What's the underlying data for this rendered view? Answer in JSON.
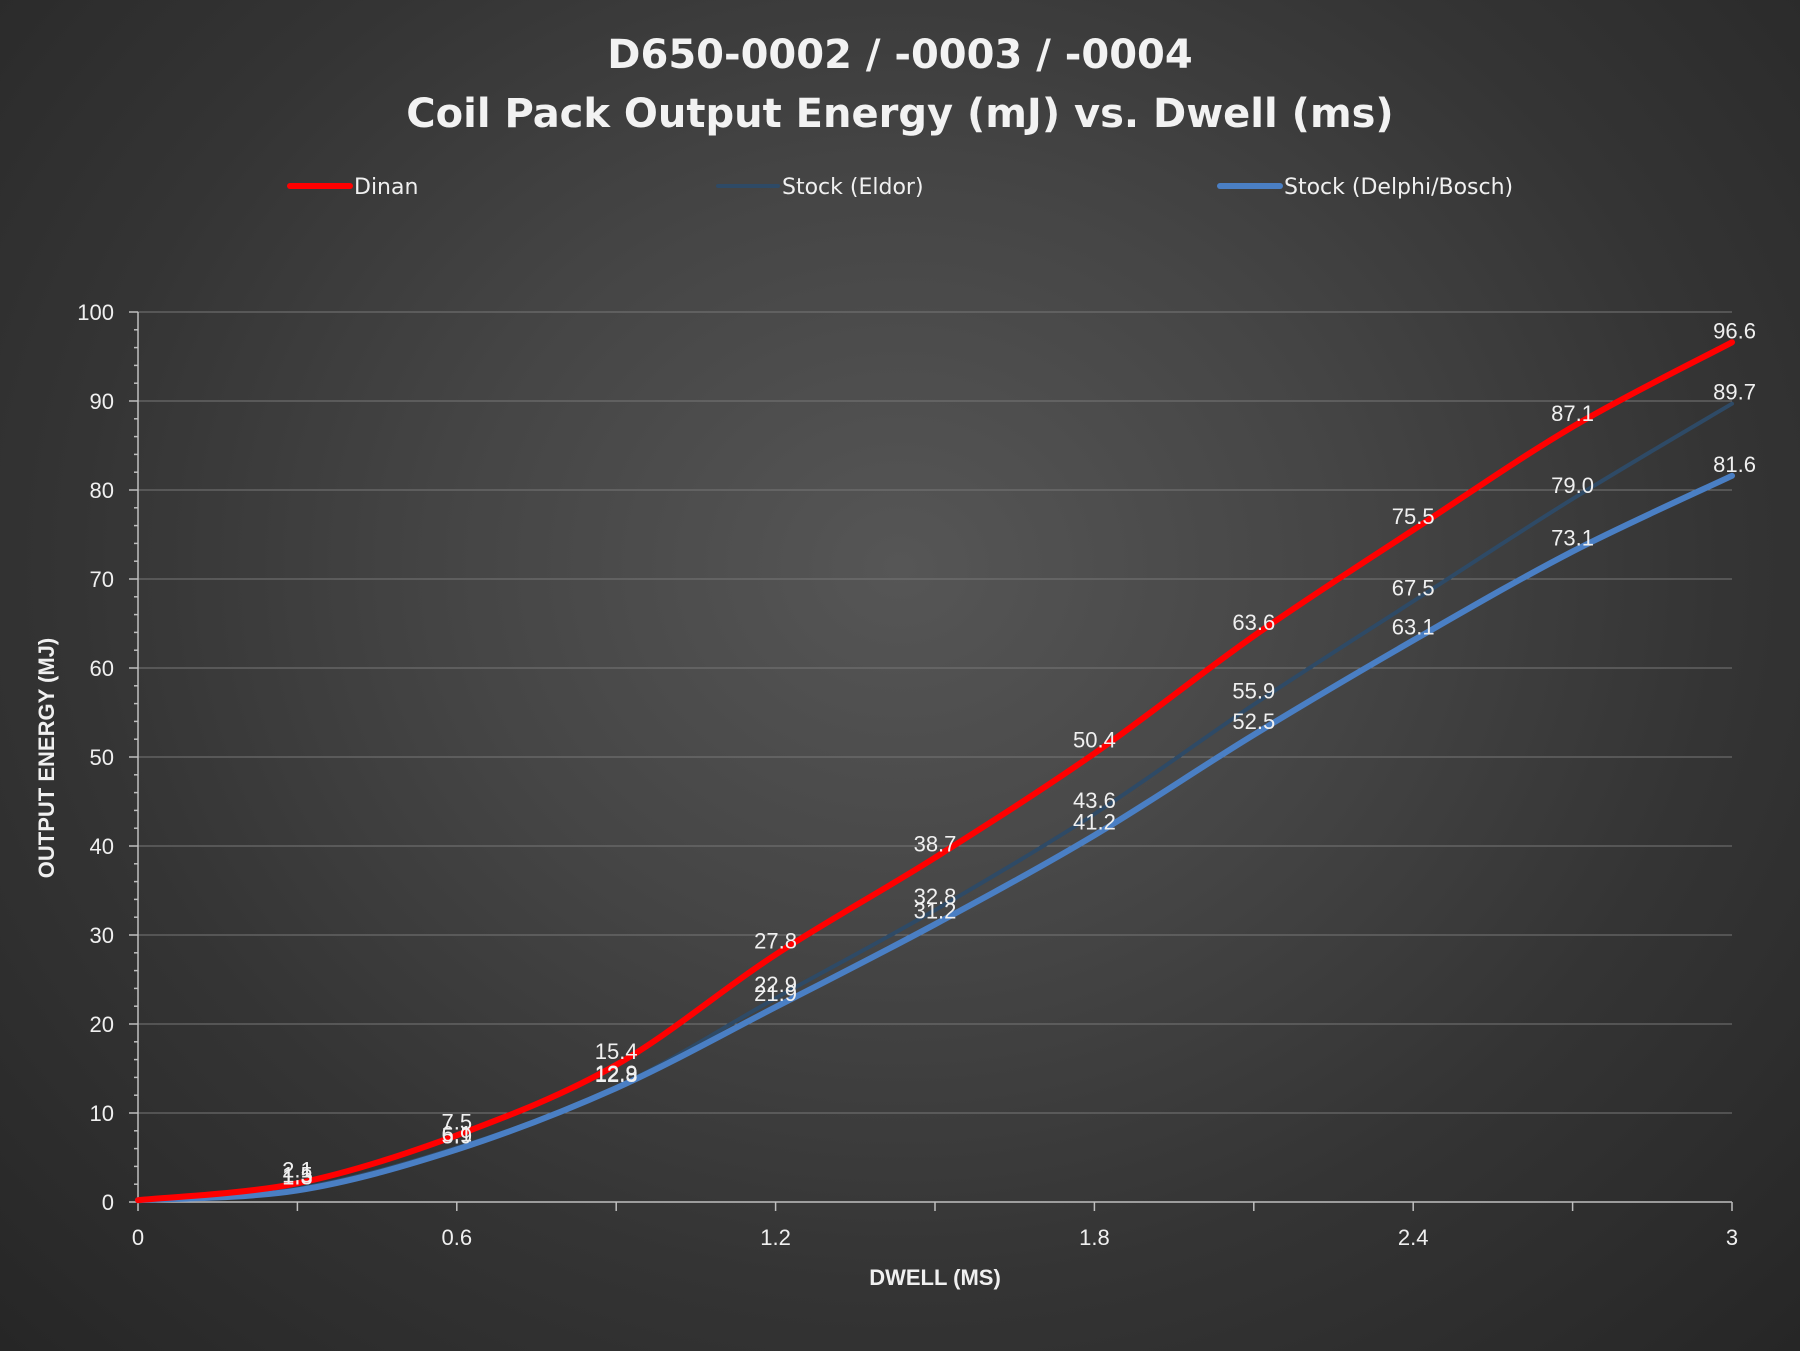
{
  "chart_data": {
    "type": "line",
    "title": "D650-0002  /  -0003  /  -0004",
    "subtitle": "Coil  Pack  Output  Energy  (mJ)  vs.  Dwell  (ms)",
    "xlabel": "DWELL (MS)",
    "ylabel": "OUTPUT ENERGY (MJ)",
    "xlim": [
      0,
      3
    ],
    "ylim": [
      0,
      100
    ],
    "xticks": [
      0,
      0.6,
      1.2,
      1.8,
      2.4,
      3
    ],
    "xtick_labels": [
      "0",
      "0.6",
      "1.2",
      "1.8",
      "2.4",
      "3"
    ],
    "yticks": [
      0,
      10,
      20,
      30,
      40,
      50,
      60,
      70,
      80,
      90,
      100
    ],
    "ytick_labels": [
      "0",
      "10",
      "20",
      "30",
      "40",
      "50",
      "60",
      "70",
      "80",
      "90",
      "100"
    ],
    "grid": true,
    "legend_position": "top",
    "x": [
      0,
      0.3,
      0.6,
      0.9,
      1.2,
      1.5,
      1.8,
      2.1,
      2.4,
      2.7,
      3.0
    ],
    "series": [
      {
        "name": "Dinan",
        "color": "#ff0000",
        "values": [
          0.2,
          2.1,
          7.5,
          15.4,
          27.8,
          38.7,
          50.4,
          63.6,
          75.5,
          87.1,
          96.6
        ],
        "labels": [
          "",
          "2.1",
          "7.5",
          "15.4",
          "27.8",
          "38.7",
          "50.4",
          "63.6",
          "75.5",
          "87.1",
          "96.6"
        ]
      },
      {
        "name": "Stock (Eldor)",
        "color": "#2e4a66",
        "values": [
          0.2,
          1.5,
          6.1,
          12.9,
          22.9,
          32.8,
          43.6,
          55.9,
          67.5,
          79.0,
          89.7
        ],
        "labels": [
          "",
          "1.5",
          "6.1",
          "12.9",
          "22.9",
          "32.8",
          "43.6",
          "55.9",
          "67.5",
          "79.0",
          "89.7"
        ]
      },
      {
        "name": "Stock (Delphi/Bosch)",
        "color": "#4a7fc4",
        "values": [
          0.2,
          1.3,
          5.9,
          12.8,
          21.9,
          31.2,
          41.2,
          52.5,
          63.1,
          73.1,
          81.6
        ],
        "labels": [
          "",
          "1.3",
          "5.9",
          "12.8",
          "21.9",
          "31.2",
          "41.2",
          "52.5",
          "63.1",
          "73.1",
          "81.6"
        ]
      }
    ]
  }
}
